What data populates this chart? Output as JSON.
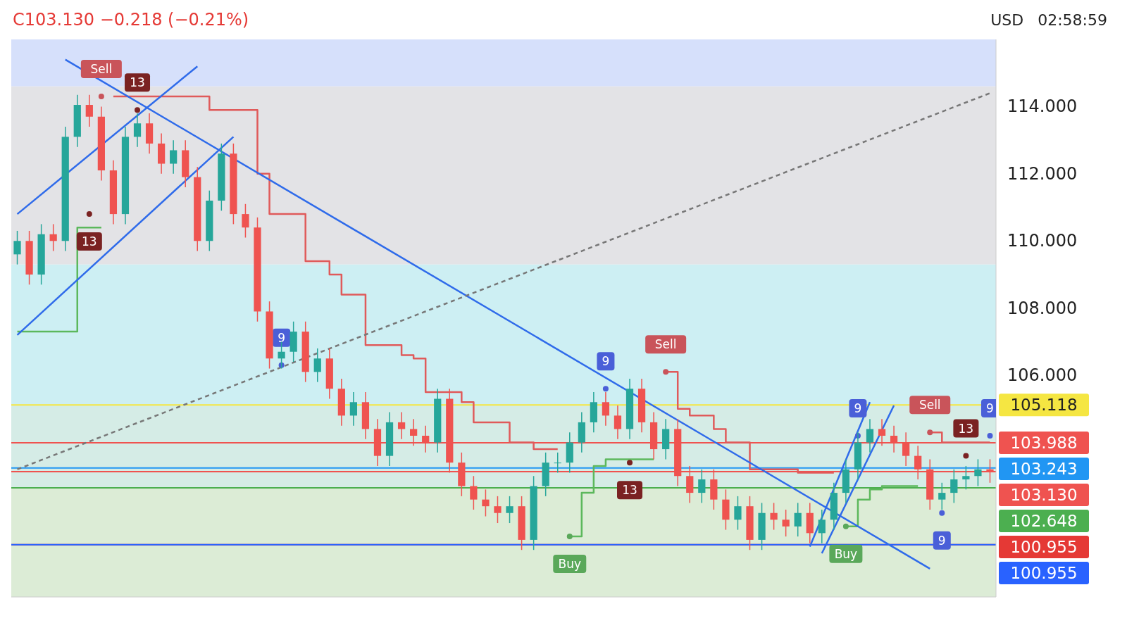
{
  "chart_data": {
    "type": "candlestick",
    "title": "C103.130 −0.218 (−0.21%)",
    "categories": [
      null,
      null,
      null,
      null,
      null,
      null,
      null,
      null,
      null,
      null,
      null,
      null,
      null,
      null,
      null,
      null,
      null,
      null,
      null,
      null,
      null,
      null,
      null,
      null,
      null,
      null,
      null,
      null,
      null,
      null,
      null,
      null,
      null,
      null,
      null,
      null,
      null,
      null,
      null,
      null,
      null,
      null,
      null,
      null,
      null,
      null,
      null,
      null,
      null,
      null,
      null,
      null,
      null,
      null,
      null,
      null,
      null,
      null,
      null,
      null,
      null,
      null,
      null,
      null,
      null,
      null,
      null,
      null,
      null,
      null,
      null,
      null,
      null,
      null,
      null,
      null,
      null,
      null,
      null,
      null,
      null,
      null
    ],
    "ohlc": [
      [
        109.6,
        110.3,
        109.3,
        110.0
      ],
      [
        110.0,
        110.3,
        108.7,
        109.0
      ],
      [
        109.0,
        110.5,
        108.7,
        110.2
      ],
      [
        110.2,
        110.5,
        109.7,
        110.0
      ],
      [
        110.0,
        113.4,
        109.7,
        113.1
      ],
      [
        113.1,
        114.35,
        112.8,
        114.05
      ],
      [
        114.05,
        114.35,
        113.4,
        113.7
      ],
      [
        113.7,
        114.0,
        111.8,
        112.1
      ],
      [
        112.1,
        112.4,
        110.5,
        110.8
      ],
      [
        110.8,
        113.4,
        110.5,
        113.1
      ],
      [
        113.1,
        113.8,
        112.8,
        113.5
      ],
      [
        113.5,
        113.8,
        112.6,
        112.9
      ],
      [
        112.9,
        113.2,
        112.0,
        112.3
      ],
      [
        112.3,
        113.0,
        112.0,
        112.7
      ],
      [
        112.7,
        113.0,
        111.6,
        111.9
      ],
      [
        111.9,
        112.2,
        109.7,
        110.0
      ],
      [
        110.0,
        111.5,
        109.7,
        111.2
      ],
      [
        111.2,
        112.9,
        110.9,
        112.6
      ],
      [
        112.6,
        112.9,
        110.5,
        110.8
      ],
      [
        110.8,
        111.1,
        110.1,
        110.4
      ],
      [
        110.4,
        110.7,
        107.6,
        107.9
      ],
      [
        107.9,
        108.2,
        106.2,
        106.5
      ],
      [
        106.5,
        107.0,
        106.2,
        106.7
      ],
      [
        106.7,
        107.6,
        106.4,
        107.3
      ],
      [
        107.3,
        107.6,
        105.8,
        106.1
      ],
      [
        106.1,
        106.8,
        105.8,
        106.5
      ],
      [
        106.5,
        106.8,
        105.3,
        105.6
      ],
      [
        105.6,
        105.9,
        104.5,
        104.8
      ],
      [
        104.8,
        105.5,
        104.5,
        105.2
      ],
      [
        105.2,
        105.5,
        104.1,
        104.4
      ],
      [
        104.4,
        104.7,
        103.3,
        103.6
      ],
      [
        103.6,
        104.9,
        103.3,
        104.6
      ],
      [
        104.6,
        104.9,
        104.1,
        104.4
      ],
      [
        104.4,
        104.7,
        103.9,
        104.2
      ],
      [
        104.2,
        104.5,
        103.7,
        104.0
      ],
      [
        104.0,
        105.6,
        103.7,
        105.3
      ],
      [
        105.3,
        105.6,
        103.1,
        103.4
      ],
      [
        103.4,
        103.7,
        102.4,
        102.7
      ],
      [
        102.7,
        103.0,
        102.0,
        102.3
      ],
      [
        102.3,
        102.6,
        101.8,
        102.1
      ],
      [
        102.1,
        102.4,
        101.6,
        101.9
      ],
      [
        101.9,
        102.4,
        101.6,
        102.1
      ],
      [
        102.1,
        102.4,
        100.8,
        101.1
      ],
      [
        101.1,
        103.0,
        100.8,
        102.7
      ],
      [
        102.7,
        103.7,
        102.4,
        103.4
      ],
      [
        103.4,
        103.7,
        103.1,
        103.4
      ],
      [
        103.4,
        104.3,
        103.1,
        104.0
      ],
      [
        104.0,
        104.9,
        103.7,
        104.6
      ],
      [
        104.6,
        105.5,
        104.3,
        105.2
      ],
      [
        105.2,
        105.5,
        104.5,
        104.8
      ],
      [
        104.8,
        105.1,
        104.1,
        104.4
      ],
      [
        104.4,
        105.9,
        104.1,
        105.6
      ],
      [
        105.6,
        105.9,
        104.3,
        104.6
      ],
      [
        104.6,
        104.9,
        103.5,
        103.8
      ],
      [
        103.8,
        104.7,
        103.5,
        104.4
      ],
      [
        104.4,
        104.7,
        102.7,
        103.0
      ],
      [
        103.0,
        103.3,
        102.2,
        102.5
      ],
      [
        102.5,
        103.2,
        102.2,
        102.9
      ],
      [
        102.9,
        103.2,
        102.0,
        102.3
      ],
      [
        102.3,
        102.6,
        101.4,
        101.7
      ],
      [
        101.7,
        102.4,
        101.4,
        102.1
      ],
      [
        102.1,
        102.4,
        100.8,
        101.1
      ],
      [
        101.1,
        102.2,
        100.8,
        101.9
      ],
      [
        101.9,
        102.2,
        101.4,
        101.7
      ],
      [
        101.7,
        102.0,
        101.2,
        101.5
      ],
      [
        101.5,
        102.2,
        101.2,
        101.9
      ],
      [
        101.9,
        102.2,
        101.0,
        101.3
      ],
      [
        101.3,
        102.0,
        101.0,
        101.7
      ],
      [
        101.7,
        102.8,
        101.4,
        102.5
      ],
      [
        102.5,
        103.5,
        102.2,
        103.2
      ],
      [
        103.2,
        104.3,
        102.9,
        104.0
      ],
      [
        104.0,
        104.7,
        103.7,
        104.4
      ],
      [
        104.4,
        104.7,
        103.9,
        104.2
      ],
      [
        104.2,
        104.5,
        103.7,
        104.0
      ],
      [
        104.0,
        104.3,
        103.3,
        103.6
      ],
      [
        103.6,
        103.9,
        102.9,
        103.2
      ],
      [
        103.2,
        103.5,
        102.0,
        102.3
      ],
      [
        102.3,
        102.8,
        102.0,
        102.5
      ],
      [
        102.5,
        103.2,
        102.2,
        102.9
      ],
      [
        102.9,
        103.3,
        102.6,
        103.0
      ],
      [
        103.0,
        103.5,
        102.7,
        103.2
      ],
      [
        103.2,
        103.5,
        102.8,
        103.13
      ]
    ],
    "colors": [
      "#26a69a",
      "#ef5350",
      "#26a69a",
      "#ef5350",
      "#26a69a",
      "#26a69a",
      "#ef5350",
      "#ef5350",
      "#ef5350",
      "#26a69a",
      "#26a69a",
      "#ef5350",
      "#ef5350",
      "#26a69a",
      "#ef5350",
      "#ef5350",
      "#26a69a",
      "#26a69a",
      "#ef5350",
      "#ef5350",
      "#ef5350",
      "#ef5350",
      "#26a69a",
      "#26a69a",
      "#ef5350",
      "#26a69a",
      "#ef5350",
      "#ef5350",
      "#26a69a",
      "#ef5350",
      "#ef5350",
      "#26a69a",
      "#ef5350",
      "#ef5350",
      "#ef5350",
      "#26a69a",
      "#ef5350",
      "#ef5350",
      "#ef5350",
      "#ef5350",
      "#ef5350",
      "#26a69a",
      "#ef5350",
      "#26a69a",
      "#26a69a",
      "#26a69a",
      "#26a69a",
      "#26a69a",
      "#26a69a",
      "#ef5350",
      "#ef5350",
      "#26a69a",
      "#ef5350",
      "#ef5350",
      "#26a69a",
      "#ef5350",
      "#ef5350",
      "#26a69a",
      "#ef5350",
      "#ef5350",
      "#26a69a",
      "#ef5350",
      "#26a69a",
      "#ef5350",
      "#ef5350",
      "#26a69a",
      "#ef5350",
      "#26a69a",
      "#26a69a",
      "#26a69a",
      "#26a69a",
      "#26a69a",
      "#ef5350",
      "#ef5350",
      "#ef5350",
      "#ef5350",
      "#ef5350",
      "#26a69a",
      "#26a69a",
      "#26a69a",
      "#26a69a",
      "#ef5350"
    ],
    "series": [
      {
        "type": "step",
        "color": "#e05a5a",
        "values": [
          null,
          null,
          null,
          null,
          null,
          null,
          null,
          null,
          114.3,
          114.3,
          114.3,
          114.3,
          114.3,
          114.3,
          114.3,
          114.3,
          113.9,
          113.9,
          113.9,
          113.9,
          112.0,
          110.8,
          110.8,
          110.8,
          109.4,
          109.4,
          109.0,
          108.4,
          108.4,
          106.9,
          106.9,
          106.9,
          106.6,
          106.5,
          105.5,
          105.5,
          105.5,
          105.2,
          104.6,
          104.6,
          104.6,
          104.0,
          104.0,
          103.8,
          103.8,
          103.8,
          null,
          null,
          null,
          null,
          null,
          null,
          null,
          null,
          106.1,
          105.0,
          104.8,
          104.8,
          104.4,
          104.0,
          104.0,
          103.2,
          103.2,
          103.2,
          103.2,
          103.1,
          103.1,
          103.1,
          103.1,
          null,
          null,
          null,
          null,
          null,
          null,
          null,
          104.3,
          104.0,
          104.0,
          104.0,
          104.0,
          104.0
        ]
      },
      {
        "type": "step",
        "color": "#5cb85c",
        "values": [
          107.3,
          107.3,
          107.3,
          107.3,
          107.3,
          110.4,
          110.4,
          110.4,
          null,
          null,
          null,
          null,
          null,
          null,
          null,
          null,
          null,
          null,
          null,
          null,
          null,
          null,
          null,
          null,
          null,
          null,
          null,
          null,
          null,
          null,
          null,
          null,
          null,
          null,
          null,
          null,
          null,
          null,
          null,
          null,
          null,
          null,
          null,
          null,
          null,
          null,
          101.2,
          102.5,
          103.3,
          103.5,
          103.5,
          103.5,
          103.5,
          103.5,
          null,
          null,
          null,
          null,
          null,
          null,
          null,
          null,
          null,
          null,
          null,
          null,
          null,
          null,
          null,
          101.5,
          102.3,
          102.6,
          102.7,
          102.7,
          102.7,
          102.7,
          null,
          null,
          null,
          null,
          null,
          null
        ]
      },
      {
        "type": "line",
        "color": "#2f6bea",
        "values": [
          null,
          null,
          null,
          null,
          115.4,
          null,
          null,
          null,
          null,
          null,
          null,
          null,
          null,
          null,
          null,
          null,
          null,
          null,
          null,
          null,
          null,
          null,
          null,
          null,
          null,
          null,
          null,
          null,
          null,
          null,
          null,
          null,
          null,
          null,
          null,
          null,
          null,
          null,
          null,
          null,
          null,
          null,
          null,
          null,
          null,
          null,
          null,
          null,
          null,
          null,
          null,
          null,
          null,
          null,
          null,
          null,
          null,
          null,
          null,
          null,
          null,
          null,
          null,
          null,
          null,
          null,
          null,
          null,
          null,
          null,
          null,
          null,
          null,
          null,
          null,
          null,
          100.24,
          null,
          null,
          null,
          null,
          null
        ]
      },
      {
        "type": "line",
        "color": "#2f6bea",
        "values": [
          110.8,
          null,
          null,
          null,
          null,
          null,
          null,
          null,
          null,
          null,
          null,
          null,
          null,
          null,
          null,
          115.2,
          null,
          null,
          null,
          null,
          null,
          null,
          null,
          null,
          null,
          null,
          null,
          null,
          null,
          null,
          null,
          null,
          null,
          null,
          null,
          null,
          null,
          null,
          null,
          null,
          null,
          null,
          null,
          null,
          null,
          null,
          null,
          null,
          null,
          null,
          null,
          null,
          null,
          null,
          null,
          null,
          null,
          null,
          null,
          null,
          null,
          null,
          null,
          null,
          null,
          null,
          null,
          null,
          null,
          null,
          null,
          null,
          null,
          null,
          null,
          null,
          null,
          null,
          null,
          null,
          null,
          null
        ]
      },
      {
        "type": "line",
        "color": "#2f6bea",
        "values": [
          107.2,
          null,
          null,
          null,
          null,
          null,
          null,
          null,
          null,
          null,
          null,
          null,
          null,
          null,
          null,
          null,
          null,
          null,
          113.1,
          null,
          null,
          null,
          null,
          null,
          null,
          null,
          null,
          null,
          null,
          null,
          null,
          null,
          null,
          null,
          null,
          null,
          null,
          null,
          null,
          null,
          null,
          null,
          null,
          null,
          null,
          null,
          null,
          null,
          null,
          null,
          null,
          null,
          null,
          null,
          null,
          null,
          null,
          null,
          null,
          null,
          null,
          null,
          null,
          null,
          null,
          null,
          null,
          null,
          null,
          null,
          null,
          null,
          null,
          null,
          null,
          null,
          null,
          null,
          null,
          null,
          null,
          null
        ]
      },
      {
        "type": "line",
        "color": "#2f6bea",
        "values": [
          null,
          null,
          null,
          null,
          null,
          null,
          null,
          null,
          null,
          null,
          null,
          null,
          null,
          null,
          null,
          null,
          null,
          null,
          null,
          null,
          null,
          null,
          null,
          null,
          null,
          null,
          null,
          null,
          null,
          null,
          null,
          null,
          null,
          null,
          null,
          null,
          null,
          null,
          null,
          null,
          null,
          null,
          null,
          null,
          null,
          null,
          null,
          null,
          null,
          null,
          null,
          null,
          null,
          null,
          null,
          null,
          null,
          null,
          null,
          null,
          null,
          null,
          null,
          null,
          null,
          null,
          100.9,
          null,
          null,
          null,
          null,
          105.2,
          null,
          null,
          null,
          null,
          null,
          null,
          null,
          null,
          null,
          null
        ]
      },
      {
        "type": "line",
        "color": "#2f6bea",
        "values": [
          null,
          null,
          null,
          null,
          null,
          null,
          null,
          null,
          null,
          null,
          null,
          null,
          null,
          null,
          null,
          null,
          null,
          null,
          null,
          null,
          null,
          null,
          null,
          null,
          null,
          null,
          null,
          null,
          null,
          null,
          null,
          null,
          null,
          null,
          null,
          null,
          null,
          null,
          null,
          null,
          null,
          null,
          null,
          null,
          null,
          null,
          null,
          null,
          null,
          null,
          null,
          null,
          null,
          null,
          null,
          null,
          null,
          null,
          null,
          null,
          null,
          null,
          null,
          null,
          null,
          null,
          null,
          100.7,
          null,
          null,
          null,
          null,
          null,
          105.1,
          null,
          null,
          null,
          null,
          null,
          null,
          null,
          null
        ]
      },
      {
        "type": "line",
        "color": "#777777",
        "line_style": "dashed",
        "values": [
          103.2,
          null,
          null,
          null,
          null,
          null,
          null,
          null,
          null,
          null,
          null,
          null,
          null,
          null,
          null,
          null,
          null,
          null,
          null,
          null,
          null,
          null,
          null,
          null,
          null,
          null,
          null,
          null,
          null,
          null,
          null,
          null,
          null,
          null,
          null,
          null,
          null,
          null,
          null,
          null,
          null,
          null,
          null,
          null,
          null,
          null,
          null,
          null,
          null,
          null,
          null,
          null,
          null,
          null,
          null,
          null,
          null,
          null,
          null,
          null,
          null,
          null,
          null,
          null,
          null,
          null,
          null,
          null,
          null,
          null,
          null,
          null,
          null,
          null,
          null,
          null,
          null,
          null,
          null,
          null,
          null,
          114.4
        ]
      },
      {
        "type": "scatter",
        "name": "Sell",
        "color": "#c9545a",
        "marker": "circle",
        "values": [
          null,
          null,
          null,
          null,
          null,
          null,
          null,
          114.3,
          null,
          null,
          null,
          null,
          null,
          null,
          null,
          null,
          null,
          null,
          null,
          null,
          null,
          null,
          null,
          null,
          null,
          null,
          null,
          null,
          null,
          null,
          null,
          null,
          null,
          null,
          null,
          null,
          null,
          null,
          null,
          null,
          null,
          null,
          null,
          null,
          null,
          null,
          null,
          null,
          null,
          null,
          null,
          null,
          null,
          null,
          106.1,
          null,
          null,
          null,
          null,
          null,
          null,
          null,
          null,
          null,
          null,
          null,
          null,
          null,
          null,
          null,
          null,
          null,
          null,
          null,
          null,
          null,
          104.3,
          null,
          null,
          null,
          null,
          null
        ]
      },
      {
        "type": "scatter",
        "name": "Buy",
        "color": "#5aa85a",
        "marker": "circle",
        "values": [
          null,
          null,
          null,
          null,
          null,
          null,
          null,
          null,
          null,
          null,
          null,
          null,
          null,
          null,
          null,
          null,
          null,
          null,
          null,
          null,
          null,
          null,
          null,
          null,
          null,
          null,
          null,
          null,
          null,
          null,
          null,
          null,
          null,
          null,
          null,
          null,
          null,
          null,
          null,
          null,
          null,
          null,
          null,
          null,
          null,
          null,
          101.2,
          null,
          null,
          null,
          null,
          null,
          null,
          null,
          null,
          null,
          null,
          null,
          null,
          null,
          null,
          null,
          null,
          null,
          null,
          null,
          null,
          null,
          null,
          101.5,
          null,
          null,
          null,
          null,
          null,
          null,
          null,
          null,
          null,
          null,
          null,
          null
        ]
      },
      {
        "type": "scatter",
        "name": "9",
        "color": "#4a5fd8",
        "marker": "circle",
        "values": [
          null,
          null,
          null,
          null,
          null,
          null,
          null,
          null,
          null,
          null,
          null,
          null,
          null,
          null,
          null,
          null,
          null,
          null,
          null,
          null,
          null,
          null,
          106.3,
          null,
          null,
          null,
          null,
          null,
          null,
          null,
          null,
          null,
          null,
          null,
          null,
          null,
          null,
          null,
          null,
          null,
          null,
          null,
          null,
          null,
          null,
          null,
          null,
          null,
          null,
          105.6,
          null,
          null,
          null,
          null,
          null,
          null,
          null,
          null,
          null,
          null,
          null,
          null,
          null,
          null,
          null,
          null,
          null,
          null,
          null,
          null,
          104.2,
          null,
          null,
          null,
          null,
          null,
          null,
          101.9,
          null,
          null,
          null,
          104.2
        ]
      },
      {
        "type": "scatter",
        "name": "13",
        "color": "#7a2222",
        "marker": "circle",
        "values": [
          null,
          null,
          null,
          null,
          null,
          null,
          110.8,
          null,
          null,
          null,
          113.9,
          null,
          null,
          null,
          null,
          null,
          null,
          null,
          null,
          null,
          null,
          null,
          null,
          null,
          null,
          null,
          null,
          null,
          null,
          null,
          null,
          null,
          null,
          null,
          null,
          null,
          null,
          null,
          null,
          null,
          null,
          null,
          null,
          null,
          null,
          null,
          null,
          null,
          null,
          null,
          null,
          103.4,
          null,
          null,
          null,
          null,
          null,
          null,
          null,
          null,
          null,
          null,
          null,
          null,
          null,
          null,
          null,
          null,
          null,
          null,
          null,
          null,
          null,
          null,
          null,
          null,
          null,
          null,
          null,
          103.6,
          null,
          null
        ]
      }
    ],
    "ylim": [
      99.4,
      116
    ],
    "yticks": [
      {
        "value": 106,
        "label": "106.000"
      },
      {
        "value": 108,
        "label": "108.000"
      },
      {
        "value": 110,
        "label": "110.000"
      },
      {
        "value": 112,
        "label": "112.000"
      },
      {
        "value": 114,
        "label": "114.000"
      }
    ],
    "tick_labels": "y",
    "bands": [
      {
        "axis": "y",
        "from": 114.6,
        "to": 116,
        "color": "#d6e0fb"
      },
      {
        "axis": "y",
        "from": 109.3,
        "to": 114.6,
        "color": "#e3e3e6"
      },
      {
        "axis": "y",
        "from": 105.118,
        "to": 109.3,
        "color": "#cdeff3"
      },
      {
        "axis": "y",
        "from": 102.648,
        "to": 105.118,
        "color": "#d5ece6"
      },
      {
        "axis": "y",
        "from": 99.4,
        "to": 102.648,
        "color": "#dcecd6"
      }
    ],
    "ref_lines": [
      {
        "axis": "y",
        "value": 105.118,
        "label": "105.118",
        "color": "#f5e642"
      },
      {
        "axis": "y",
        "value": 103.988,
        "label": "103.988",
        "color": "#ef5350"
      },
      {
        "axis": "y",
        "value": 103.243,
        "label": "103.243",
        "color": "#2196f3"
      },
      {
        "axis": "y",
        "value": 103.13,
        "label": "103.130",
        "color": "#ef5350"
      },
      {
        "axis": "y",
        "value": 102.648,
        "label": "102.648",
        "color": "#4caf50"
      },
      {
        "axis": "y",
        "value": 100.955,
        "label": "100.955",
        "color": "#e53935"
      },
      {
        "axis": "y",
        "value": 100.955,
        "label": "100.955",
        "color": "#2962ff"
      }
    ],
    "annotations": [
      "USD",
      "02:58:59"
    ]
  }
}
